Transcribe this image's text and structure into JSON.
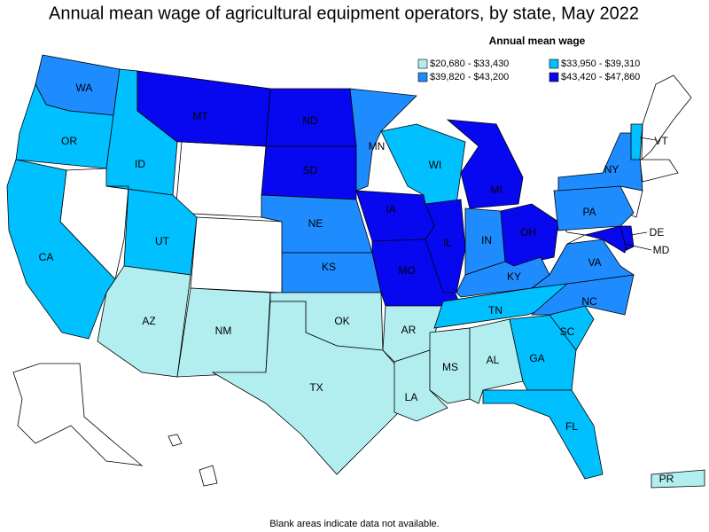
{
  "title": "Annual mean wage of agricultural equipment operators, by state, May 2022",
  "legend": {
    "title": "Annual mean wage",
    "bins": [
      {
        "label": "$20,680 - $33,430",
        "color": "#b2eef0"
      },
      {
        "label": "$33,950 - $39,310",
        "color": "#00c0ff"
      },
      {
        "label": "$39,820 - $43,200",
        "color": "#1e8cff"
      },
      {
        "label": "$43,420 - $47,860",
        "color": "#0808f0"
      }
    ]
  },
  "states": [
    {
      "label": "WA",
      "bin": 2
    },
    {
      "label": "OR",
      "bin": 1
    },
    {
      "label": "CA",
      "bin": 1
    },
    {
      "label": "ID",
      "bin": 1
    },
    {
      "label": "MT",
      "bin": 3
    },
    {
      "label": "UT",
      "bin": 1
    },
    {
      "label": "AZ",
      "bin": 0
    },
    {
      "label": "NM",
      "bin": 0
    },
    {
      "label": "ND",
      "bin": 3
    },
    {
      "label": "SD",
      "bin": 3
    },
    {
      "label": "NE",
      "bin": 2
    },
    {
      "label": "KS",
      "bin": 2
    },
    {
      "label": "OK",
      "bin": 0
    },
    {
      "label": "TX",
      "bin": 0
    },
    {
      "label": "MN",
      "bin": 2
    },
    {
      "label": "IA",
      "bin": 3
    },
    {
      "label": "MO",
      "bin": 3
    },
    {
      "label": "AR",
      "bin": 0
    },
    {
      "label": "LA",
      "bin": 0
    },
    {
      "label": "WI",
      "bin": 1
    },
    {
      "label": "IL",
      "bin": 3
    },
    {
      "label": "MI",
      "bin": 3
    },
    {
      "label": "IN",
      "bin": 2
    },
    {
      "label": "OH",
      "bin": 3
    },
    {
      "label": "KY",
      "bin": 2
    },
    {
      "label": "TN",
      "bin": 1
    },
    {
      "label": "MS",
      "bin": 0
    },
    {
      "label": "AL",
      "bin": 0
    },
    {
      "label": "GA",
      "bin": 1
    },
    {
      "label": "FL",
      "bin": 1
    },
    {
      "label": "SC",
      "bin": 1
    },
    {
      "label": "NC",
      "bin": 2
    },
    {
      "label": "VA",
      "bin": 2
    },
    {
      "label": "PA",
      "bin": 2
    },
    {
      "label": "NY",
      "bin": 2
    },
    {
      "label": "MD",
      "bin": 3
    },
    {
      "label": "DE",
      "bin": 3
    },
    {
      "label": "VT",
      "bin": 1
    },
    {
      "label": "PR",
      "bin": 0
    }
  ],
  "footnote": "Blank areas indicate data not available."
}
